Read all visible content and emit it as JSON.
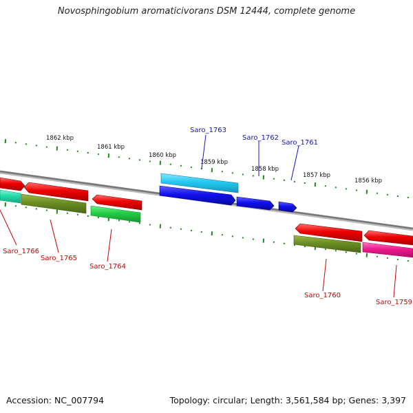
{
  "title": "Novosphingobium aromaticivorans DSM 12444, complete genome",
  "footer": {
    "accession": "Accession: NC_007794",
    "summary": "Topology: circular; Length: 3,561,584 bp; Genes: 3,397"
  },
  "colors": {
    "backbone": "#7a7a7a",
    "tick": "#1a8a1a",
    "label_top": "#1010c0",
    "label_bottom": "#cc0000",
    "red": "#ee0000",
    "olive": "#6b8e23",
    "green": "#22cc44",
    "teal": "#22ddaa",
    "cyan": "#22c8f0",
    "blue": "#1010ee",
    "magenta": "#ee1a8c"
  },
  "scale": {
    "unit": "kbp",
    "ticks": [
      {
        "label": "1862 kbp"
      },
      {
        "label": "1861 kbp"
      },
      {
        "label": "1860 kbp"
      },
      {
        "label": "1859 kbp"
      },
      {
        "label": "1858 kbp"
      },
      {
        "label": "1857 kbp"
      },
      {
        "label": "1856 kbp"
      }
    ]
  },
  "genes": [
    {
      "label": "Saro_1766",
      "strand": "lower",
      "color": "red"
    },
    {
      "label": "Saro_1765",
      "strand": "lower",
      "color": "olive"
    },
    {
      "label": "Saro_1764",
      "strand": "lower",
      "color": "green"
    },
    {
      "label": "Saro_1763",
      "strand": "upper",
      "color": "cyan"
    },
    {
      "label": "Saro_1762",
      "strand": "upper",
      "color": "blue"
    },
    {
      "label": "Saro_1761",
      "strand": "upper",
      "color": "blue"
    },
    {
      "label": "Saro_1760",
      "strand": "lower",
      "color": "olive"
    },
    {
      "label": "Saro_1759",
      "strand": "lower",
      "color": "magenta"
    }
  ]
}
